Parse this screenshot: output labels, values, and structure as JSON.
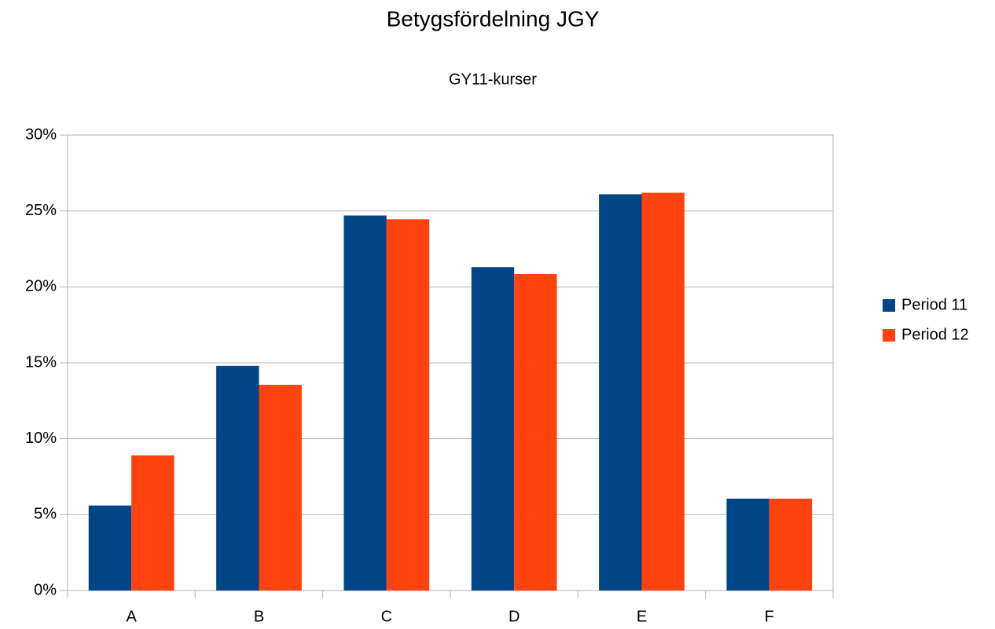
{
  "chart_data": {
    "type": "bar",
    "title": "Betygsfördelning JGY",
    "subtitle": "GY11-kurser",
    "categories": [
      "A",
      "B",
      "C",
      "D",
      "E",
      "F"
    ],
    "series": [
      {
        "name": "Period 11",
        "color": "#004586",
        "values": [
          5.6,
          14.8,
          24.7,
          21.3,
          26.1,
          6.05
        ]
      },
      {
        "name": "Period 12",
        "color": "#ff420e",
        "values": [
          8.9,
          13.55,
          24.45,
          20.85,
          26.2,
          6.05
        ]
      }
    ],
    "ylim": [
      0,
      30
    ],
    "yticks": [
      {
        "value": 0,
        "label": "0%"
      },
      {
        "value": 5,
        "label": "5%"
      },
      {
        "value": 10,
        "label": "10%"
      },
      {
        "value": 15,
        "label": "15%"
      },
      {
        "value": 20,
        "label": "20%"
      },
      {
        "value": 25,
        "label": "25%"
      },
      {
        "value": 30,
        "label": "30%"
      }
    ],
    "grid": true,
    "legend": "right"
  }
}
